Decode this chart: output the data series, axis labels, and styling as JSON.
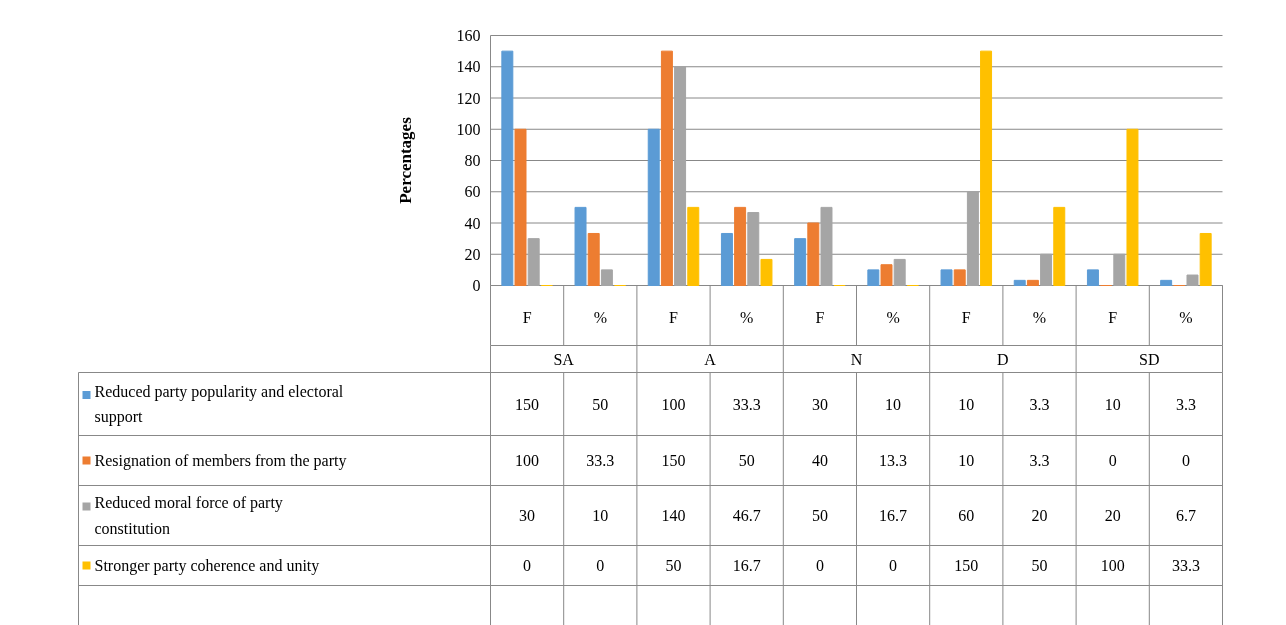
{
  "chart_data": {
    "type": "bar",
    "ylabel": "Percentages",
    "categories": [
      "F",
      "%",
      "F",
      "%",
      "F",
      "%",
      "F",
      "%",
      "F",
      "%"
    ],
    "annotations": [
      "SA",
      "A",
      "N",
      "D",
      "SD"
    ],
    "series": [
      {
        "name": "Reduced party popularity and electoral support",
        "color": "#5b9bd5",
        "values": [
          150,
          50,
          100,
          33.3,
          30,
          10,
          10,
          3.3,
          10,
          3.3
        ]
      },
      {
        "name": "Resignation of members from the party",
        "color": "#ed7d31",
        "values": [
          100,
          33.3,
          150,
          50,
          40,
          13.3,
          10,
          3.3,
          0,
          0
        ]
      },
      {
        "name": "Reduced moral force of party constitution",
        "color": "#a5a5a5",
        "values": [
          30,
          10,
          140,
          46.7,
          50,
          16.7,
          60,
          20,
          20,
          6.7
        ]
      },
      {
        "name": "Stronger party coherence and unity",
        "color": "#ffc000",
        "values": [
          0,
          0,
          50,
          16.7,
          0,
          0,
          150,
          50,
          100,
          33.3
        ]
      }
    ],
    "ylim": [
      0,
      160
    ],
    "yticks": [
      0,
      20,
      40,
      60,
      80,
      100,
      120,
      140,
      160
    ],
    "grid": "y",
    "legend": "bottom",
    "data_labels": true
  }
}
